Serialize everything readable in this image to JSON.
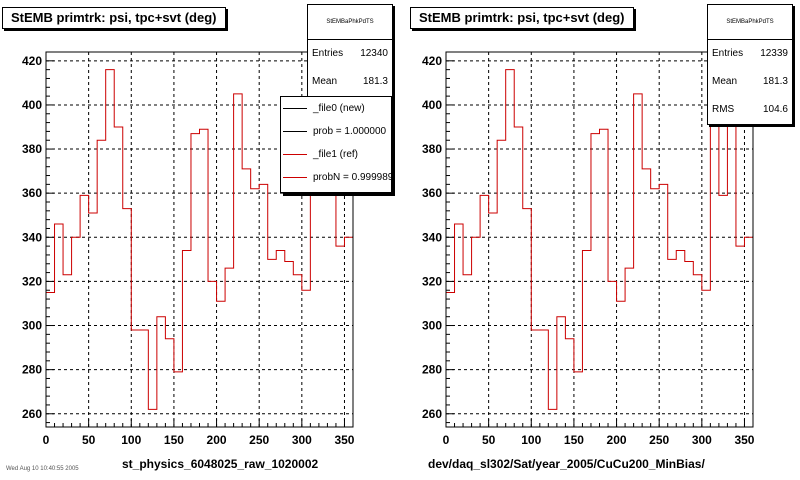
{
  "colors": {
    "ref_line": "#cc0000",
    "new_line": "#000000",
    "grid": "#000000",
    "background": "#ffffff"
  },
  "footer_text": "Wed Aug 10 10:40:55 2005",
  "chart_data": [
    {
      "type": "line",
      "title": "StEMB primtrk: psi, tpc+svt (deg)",
      "xlabel": "st_physics_6048025_raw_1020002",
      "ylabel": "",
      "xlim": [
        0,
        360
      ],
      "ylim": [
        254,
        424
      ],
      "x_ticks": [
        0,
        50,
        100,
        150,
        200,
        250,
        300,
        350
      ],
      "y_ticks": [
        260,
        280,
        300,
        320,
        340,
        360,
        380,
        400,
        420
      ],
      "grid": true,
      "bin_width": 10,
      "series": [
        {
          "name": "_file1 (ref)",
          "values": [
            315,
            346,
            323,
            340,
            359,
            351,
            384,
            416,
            390,
            353,
            298,
            298,
            262,
            304,
            294,
            279,
            334,
            387,
            389,
            320,
            311,
            326,
            405,
            371,
            362,
            364,
            330,
            334,
            329,
            323,
            316,
            361,
            359,
            383,
            336,
            340
          ]
        }
      ],
      "stats": {
        "name": "StEMBaPhkPdTS",
        "rows": [
          {
            "label": "Entries",
            "value": "12340"
          },
          {
            "label": "Mean",
            "value": "181.3"
          }
        ]
      },
      "legend": [
        {
          "label": "_file0 (new)",
          "color": "#000000"
        },
        {
          "label": "prob = 1.000000",
          "color": "#000000"
        },
        {
          "label": "_file1 (ref)",
          "color": "#cc0000"
        },
        {
          "label": "probN = 0.999989",
          "color": "#cc0000"
        }
      ]
    },
    {
      "type": "line",
      "title": "StEMB primtrk: psi, tpc+svt (deg)",
      "xlabel": "dev/daq_sl302/Sat/year_2005/CuCu200_MinBias/",
      "ylabel": "",
      "xlim": [
        0,
        360
      ],
      "ylim": [
        254,
        424
      ],
      "x_ticks": [
        0,
        50,
        100,
        150,
        200,
        250,
        300,
        350
      ],
      "y_ticks": [
        260,
        280,
        300,
        320,
        340,
        360,
        380,
        400,
        420
      ],
      "grid": true,
      "bin_width": 10,
      "series": [
        {
          "name": "",
          "values": [
            315,
            346,
            323,
            340,
            359,
            351,
            384,
            416,
            390,
            353,
            298,
            298,
            262,
            304,
            294,
            279,
            334,
            387,
            389,
            320,
            311,
            326,
            405,
            371,
            362,
            364,
            330,
            334,
            329,
            323,
            316,
            391,
            359,
            392,
            336,
            340
          ]
        }
      ],
      "stats": {
        "name": "StEMBaPhkPdTS",
        "rows": [
          {
            "label": "Entries",
            "value": "12339"
          },
          {
            "label": "Mean",
            "value": "181.3"
          },
          {
            "label": "RMS",
            "value": "104.6"
          }
        ]
      },
      "legend": []
    }
  ]
}
